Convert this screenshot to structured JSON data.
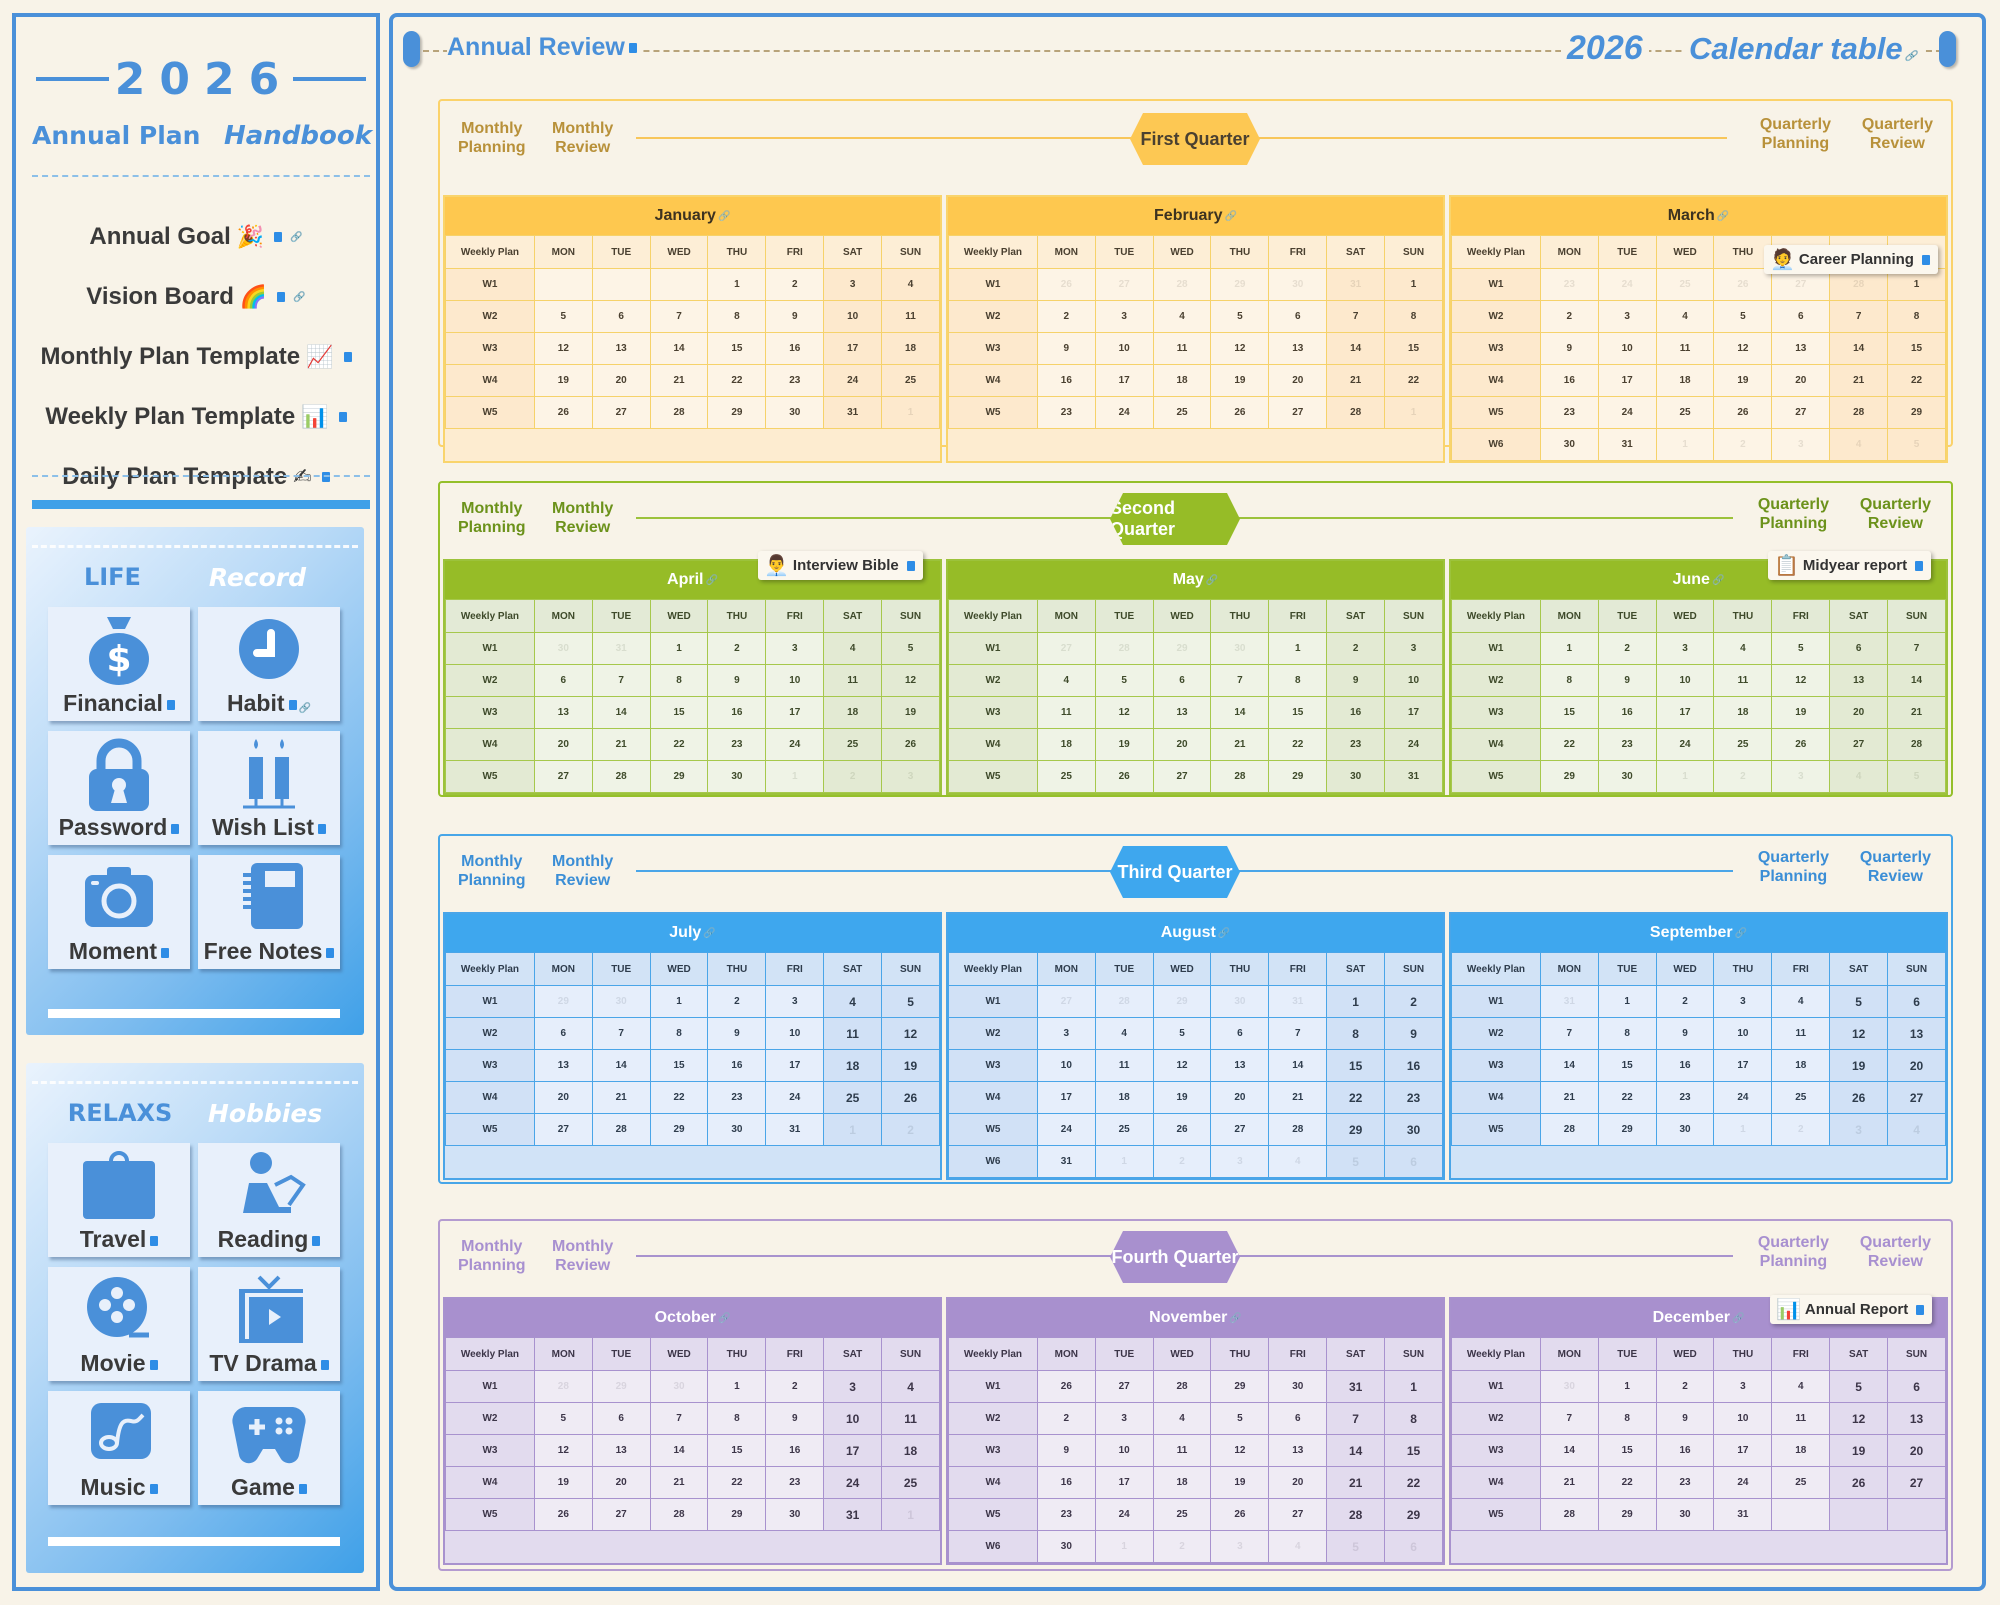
{
  "sidebar": {
    "year": "2026",
    "title_left": "Annual Plan",
    "title_right": "Handbook",
    "menu": [
      {
        "label": "Annual Goal",
        "emoji": "🎉"
      },
      {
        "label": "Vision Board",
        "emoji": "🌈"
      },
      {
        "label": "Monthly Plan Template",
        "emoji": "📈"
      },
      {
        "label": "Weekly Plan Template",
        "emoji": "📊"
      },
      {
        "label": "Daily Plan Template",
        "emoji": "✍"
      }
    ],
    "life_panel": {
      "heading_left": "LIFE",
      "heading_right": "Record",
      "tiles": [
        {
          "label": "Financial",
          "icon": "money-bag-icon"
        },
        {
          "label": "Habit",
          "icon": "clock-icon"
        },
        {
          "label": "Password",
          "icon": "lock-icon"
        },
        {
          "label": "Wish List",
          "icon": "candles-icon"
        },
        {
          "label": "Moment",
          "icon": "camera-icon"
        },
        {
          "label": "Free Notes",
          "icon": "notebook-icon"
        }
      ]
    },
    "relax_panel": {
      "heading_left": "RELAXS",
      "heading_right": "Hobbies",
      "tiles": [
        {
          "label": "Travel",
          "icon": "suitcase-icon"
        },
        {
          "label": "Reading",
          "icon": "reader-icon"
        },
        {
          "label": "Movie",
          "icon": "film-reel-icon"
        },
        {
          "label": "TV Drama",
          "icon": "tv-icon"
        },
        {
          "label": "Music",
          "icon": "music-note-icon"
        },
        {
          "label": "Game",
          "icon": "gamepad-icon"
        }
      ]
    }
  },
  "header": {
    "annual_review": "Annual Review",
    "year": "2026",
    "calendar_table": "Calendar table"
  },
  "weekday_headers": [
    "Weekly Plan",
    "MON",
    "TUE",
    "WED",
    "THU",
    "FRI",
    "SAT",
    "SUN"
  ],
  "quarters": [
    {
      "badge": "First Quarter",
      "monthly_planning": "Monthly\nPlanning",
      "monthly_review": "Monthly\nReview",
      "quarterly_planning": "Quarterly\nPlanning",
      "quarterly_review": "Quarterly\nReview",
      "float_card": {
        "label": "Career Planning",
        "icon": "🧑‍💼"
      },
      "months": [
        {
          "name": "January",
          "rows": [
            [
              "W1",
              "",
              "",
              "",
              "1",
              "2",
              "3",
              "4"
            ],
            [
              "W2",
              "5",
              "6",
              "7",
              "8",
              "9",
              "10",
              "11"
            ],
            [
              "W3",
              "12",
              "13",
              "14",
              "15",
              "16",
              "17",
              "18"
            ],
            [
              "W4",
              "19",
              "20",
              "21",
              "22",
              "23",
              "24",
              "25"
            ],
            [
              "W5",
              "26",
              "27",
              "28",
              "29",
              "30",
              "31",
              "~1"
            ]
          ]
        },
        {
          "name": "February",
          "rows": [
            [
              "W1",
              "~26",
              "~27",
              "~28",
              "~29",
              "~30",
              "~31",
              "1"
            ],
            [
              "W2",
              "2",
              "3",
              "4",
              "5",
              "6",
              "7",
              "8"
            ],
            [
              "W3",
              "9",
              "10",
              "11",
              "12",
              "13",
              "14",
              "15"
            ],
            [
              "W4",
              "16",
              "17",
              "18",
              "19",
              "20",
              "21",
              "22"
            ],
            [
              "W5",
              "23",
              "24",
              "25",
              "26",
              "27",
              "28",
              "~1"
            ]
          ]
        },
        {
          "name": "March",
          "rows": [
            [
              "W1",
              "~23",
              "~24",
              "~25",
              "~26",
              "~27",
              "~28",
              "1"
            ],
            [
              "W2",
              "2",
              "3",
              "4",
              "5",
              "6",
              "7",
              "8"
            ],
            [
              "W3",
              "9",
              "10",
              "11",
              "12",
              "13",
              "14",
              "15"
            ],
            [
              "W4",
              "16",
              "17",
              "18",
              "19",
              "20",
              "21",
              "22"
            ],
            [
              "W5",
              "23",
              "24",
              "25",
              "26",
              "27",
              "28",
              "29"
            ],
            [
              "W6",
              "30",
              "31",
              "~1",
              "~2",
              "~3",
              "~4",
              "~5"
            ]
          ]
        }
      ]
    },
    {
      "badge": "Second Quarter",
      "monthly_planning": "Monthly\nPlanning",
      "monthly_review": "Monthly\nReview",
      "quarterly_planning": "Quarterly\nPlanning",
      "quarterly_review": "Quarterly\nReview",
      "float_card_april": {
        "label": "Interview Bible",
        "icon": "👨‍💼"
      },
      "float_card": {
        "label": "Midyear report",
        "icon": "📋"
      },
      "months": [
        {
          "name": "April",
          "rows": [
            [
              "W1",
              "~30",
              "~31",
              "1",
              "2",
              "3",
              "4",
              "5"
            ],
            [
              "W2",
              "6",
              "7",
              "8",
              "9",
              "10",
              "11",
              "12"
            ],
            [
              "W3",
              "13",
              "14",
              "15",
              "16",
              "17",
              "18",
              "19"
            ],
            [
              "W4",
              "20",
              "21",
              "22",
              "23",
              "24",
              "25",
              "26"
            ],
            [
              "W5",
              "27",
              "28",
              "29",
              "30",
              "~1",
              "~2",
              "~3"
            ]
          ]
        },
        {
          "name": "May",
          "rows": [
            [
              "W1",
              "~27",
              "~28",
              "~29",
              "~30",
              "1",
              "2",
              "3"
            ],
            [
              "W2",
              "4",
              "5",
              "6",
              "7",
              "8",
              "9",
              "10"
            ],
            [
              "W3",
              "11",
              "12",
              "13",
              "14",
              "15",
              "16",
              "17"
            ],
            [
              "W4",
              "18",
              "19",
              "20",
              "21",
              "22",
              "23",
              "24"
            ],
            [
              "W5",
              "25",
              "26",
              "27",
              "28",
              "29",
              "30",
              "31"
            ]
          ]
        },
        {
          "name": "June",
          "rows": [
            [
              "W1",
              "1",
              "2",
              "3",
              "4",
              "5",
              "6",
              "7"
            ],
            [
              "W2",
              "8",
              "9",
              "10",
              "11",
              "12",
              "13",
              "14"
            ],
            [
              "W3",
              "15",
              "16",
              "17",
              "18",
              "19",
              "20",
              "21"
            ],
            [
              "W4",
              "22",
              "23",
              "24",
              "25",
              "26",
              "27",
              "28"
            ],
            [
              "W5",
              "29",
              "30",
              "~1",
              "~2",
              "~3",
              "~4",
              "~5"
            ]
          ]
        }
      ]
    },
    {
      "badge": "Third Quarter",
      "monthly_planning": "Monthly\nPlanning",
      "monthly_review": "Monthly\nReview",
      "quarterly_planning": "Quarterly\nPlanning",
      "quarterly_review": "Quarterly\nReview",
      "months": [
        {
          "name": "July",
          "rows": [
            [
              "W1",
              "~29",
              "~30",
              "1",
              "2",
              "3",
              "4",
              "5"
            ],
            [
              "W2",
              "6",
              "7",
              "8",
              "9",
              "10",
              "11",
              "12"
            ],
            [
              "W3",
              "13",
              "14",
              "15",
              "16",
              "17",
              "18",
              "19"
            ],
            [
              "W4",
              "20",
              "21",
              "22",
              "23",
              "24",
              "25",
              "26"
            ],
            [
              "W5",
              "27",
              "28",
              "29",
              "30",
              "31",
              "~1",
              "~2"
            ]
          ]
        },
        {
          "name": "August",
          "rows": [
            [
              "W1",
              "~27",
              "~28",
              "~29",
              "~30",
              "~31",
              "1",
              "2"
            ],
            [
              "W2",
              "3",
              "4",
              "5",
              "6",
              "7",
              "8",
              "9"
            ],
            [
              "W3",
              "10",
              "11",
              "12",
              "13",
              "14",
              "15",
              "16"
            ],
            [
              "W4",
              "17",
              "18",
              "19",
              "20",
              "21",
              "22",
              "23"
            ],
            [
              "W5",
              "24",
              "25",
              "26",
              "27",
              "28",
              "29",
              "30"
            ],
            [
              "W6",
              "31",
              "~1",
              "~2",
              "~3",
              "~4",
              "~5",
              "~6"
            ]
          ]
        },
        {
          "name": "September",
          "rows": [
            [
              "W1",
              "~31",
              "1",
              "2",
              "3",
              "4",
              "5",
              "6"
            ],
            [
              "W2",
              "7",
              "8",
              "9",
              "10",
              "11",
              "12",
              "13"
            ],
            [
              "W3",
              "14",
              "15",
              "16",
              "17",
              "18",
              "19",
              "20"
            ],
            [
              "W4",
              "21",
              "22",
              "23",
              "24",
              "25",
              "26",
              "27"
            ],
            [
              "W5",
              "28",
              "29",
              "30",
              "~1",
              "~2",
              "~3",
              "~4"
            ]
          ]
        }
      ]
    },
    {
      "badge": "Fourth Quarter",
      "monthly_planning": "Monthly\nPlanning",
      "monthly_review": "Monthly\nReview",
      "quarterly_planning": "Quarterly\nPlanning",
      "quarterly_review": "Quarterly\nReview",
      "float_card": {
        "label": "Annual Report",
        "icon": "📊"
      },
      "months": [
        {
          "name": "October",
          "rows": [
            [
              "W1",
              "~28",
              "~29",
              "~30",
              "1",
              "2",
              "3",
              "4"
            ],
            [
              "W2",
              "5",
              "6",
              "7",
              "8",
              "9",
              "10",
              "11"
            ],
            [
              "W3",
              "12",
              "13",
              "14",
              "15",
              "16",
              "17",
              "18"
            ],
            [
              "W4",
              "19",
              "20",
              "21",
              "22",
              "23",
              "24",
              "25"
            ],
            [
              "W5",
              "26",
              "27",
              "28",
              "29",
              "30",
              "31",
              "~1"
            ]
          ]
        },
        {
          "name": "November",
          "rows": [
            [
              "W1",
              "26",
              "27",
              "28",
              "29",
              "30",
              "31",
              "1"
            ],
            [
              "W2",
              "2",
              "3",
              "4",
              "5",
              "6",
              "7",
              "8"
            ],
            [
              "W3",
              "9",
              "10",
              "11",
              "12",
              "13",
              "14",
              "15"
            ],
            [
              "W4",
              "16",
              "17",
              "18",
              "19",
              "20",
              "21",
              "22"
            ],
            [
              "W5",
              "23",
              "24",
              "25",
              "26",
              "27",
              "28",
              "29"
            ],
            [
              "W6",
              "30",
              "~1",
              "~2",
              "~3",
              "~4",
              "~5",
              "~6"
            ]
          ]
        },
        {
          "name": "December",
          "rows": [
            [
              "W1",
              "~30",
              "1",
              "2",
              "3",
              "4",
              "5",
              "6"
            ],
            [
              "W2",
              "7",
              "8",
              "9",
              "10",
              "11",
              "12",
              "13"
            ],
            [
              "W3",
              "14",
              "15",
              "16",
              "17",
              "18",
              "19",
              "20"
            ],
            [
              "W4",
              "21",
              "22",
              "23",
              "24",
              "25",
              "26",
              "27"
            ],
            [
              "W5",
              "28",
              "29",
              "30",
              "31",
              "",
              "",
              ""
            ]
          ]
        }
      ]
    }
  ],
  "colors": {
    "accent_blue": "#4a90d9",
    "q1": "#fec84f",
    "q2": "#96bc27",
    "q3": "#3ea7ee",
    "q4": "#a890ce",
    "background": "#f8f3e8"
  }
}
